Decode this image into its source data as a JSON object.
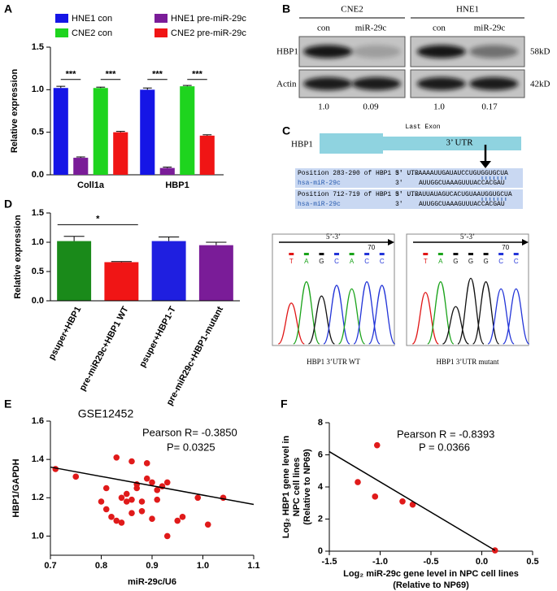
{
  "panel_labels": [
    "A",
    "B",
    "C",
    "D",
    "E",
    "F"
  ],
  "chart_data": [
    {
      "type": "bar",
      "ylabel": "Relative expression",
      "categories": [
        "Coll1a",
        "HBP1"
      ],
      "series": [
        {
          "name": "HNE1 con",
          "color": "#1515e6",
          "values": [
            1.02,
            1.0
          ],
          "errors": [
            0.02,
            0.02
          ]
        },
        {
          "name": "HNE1 pre-miR-29c",
          "color": "#7a1c98",
          "values": [
            0.2,
            0.08
          ],
          "errors": [
            0.01,
            0.01
          ]
        },
        {
          "name": "CNE2 con",
          "color": "#1ed41e",
          "values": [
            1.02,
            1.04
          ],
          "errors": [
            0.01,
            0.01
          ]
        },
        {
          "name": "CNE2 pre-miR-29c",
          "color": "#f01515",
          "values": [
            0.5,
            0.46
          ],
          "errors": [
            0.01,
            0.01
          ]
        }
      ],
      "ylim": [
        0,
        1.5
      ],
      "yticks": [
        {
          "value": 0,
          "label": "0.0"
        },
        0.5,
        {
          "value": 1,
          "label": "1.0"
        },
        1.5
      ],
      "annotations": [
        "***",
        "***",
        "***",
        "***"
      ]
    },
    {
      "type": "bar",
      "ylabel": "Relative expression",
      "categories": [
        "psuper+HBP1",
        "pre-miR29c+HBP1 WT",
        "psuper+HBP1-T",
        "pre-miR29c+HBP1-mutant"
      ],
      "values": [
        1.02,
        0.66,
        1.02,
        0.95
      ],
      "errors": [
        0.08,
        0.01,
        0.07,
        0.05
      ],
      "colors": [
        "#1a8a1a",
        "#f01515",
        "#1f1fe0",
        "#7a1c98"
      ],
      "ylim": [
        0,
        1.5
      ],
      "yticks": [
        {
          "value": 0,
          "label": "0.0"
        },
        0.5,
        {
          "value": 1,
          "label": "1.0"
        },
        1.5
      ],
      "annotations": [
        "*"
      ]
    },
    {
      "type": "scatter",
      "title": "GSE12452",
      "xlabel": "miR-29c/U6",
      "ylabel": "HBP1/GAPDH",
      "color": "#e01a1a",
      "x": [
        0.71,
        0.75,
        0.8,
        0.81,
        0.81,
        0.82,
        0.83,
        0.83,
        0.84,
        0.84,
        0.85,
        0.85,
        0.86,
        0.86,
        0.86,
        0.87,
        0.87,
        0.88,
        0.88,
        0.89,
        0.89,
        0.9,
        0.9,
        0.91,
        0.92,
        0.93,
        0.93,
        0.95,
        0.96,
        0.99,
        1.01,
        1.04,
        0.91
      ],
      "y": [
        1.35,
        1.31,
        1.18,
        1.14,
        1.25,
        1.1,
        1.41,
        1.08,
        1.07,
        1.2,
        1.18,
        1.22,
        1.39,
        1.19,
        1.12,
        1.25,
        1.27,
        1.18,
        1.13,
        1.38,
        1.3,
        1.28,
        1.09,
        1.24,
        1.26,
        1.28,
        1.0,
        1.08,
        1.1,
        1.2,
        1.06,
        1.2,
        1.19
      ],
      "trend": {
        "x": [
          0.7,
          1.1
        ],
        "y": [
          1.36,
          1.165
        ]
      },
      "xlim": [
        0.7,
        1.1
      ],
      "xticks": [
        0.7,
        0.8,
        0.9,
        {
          "value": 1,
          "label": "1.0"
        },
        1.1
      ],
      "ylim": [
        0.9,
        1.6
      ],
      "yticks": [
        {
          "value": 1,
          "label": "1.0"
        },
        1.2,
        1.4,
        1.6
      ],
      "annotations": [
        "Pearson R= -0.3850",
        "P= 0.0325"
      ]
    },
    {
      "type": "scatter",
      "xlabel": [
        "Log₂ miR-29c gene level in NPC cell lines",
        "(Relative to NP69)"
      ],
      "ylabel": [
        "Log₂ HBP1 gene level in",
        "NPC cell lines",
        "(Relative to NP69)"
      ],
      "color": "#e01a1a",
      "x": [
        -1.22,
        -1.05,
        -1.03,
        -0.78,
        -0.68,
        0.13
      ],
      "y": [
        4.3,
        3.4,
        6.6,
        3.1,
        2.9,
        0.05
      ],
      "trend": {
        "x": [
          -1.5,
          0.13
        ],
        "y": [
          6.2,
          0.05
        ]
      },
      "xlim": [
        -1.5,
        0.5
      ],
      "xticks": [
        -1.5,
        {
          "value": -1,
          "label": "-1.0"
        },
        -0.5,
        {
          "value": 0,
          "label": "0.0"
        },
        0.5
      ],
      "ylim": [
        0,
        8
      ],
      "yticks": [
        0,
        2,
        4,
        6,
        8
      ],
      "annotations": [
        "Pearson R = -0.8393",
        "P = 0.0366"
      ]
    }
  ],
  "blot": {
    "cell_lines": [
      "CNE2",
      "HNE1"
    ],
    "lanes": [
      "con",
      "miR-29c",
      "con",
      "miR-29c"
    ],
    "rows": [
      "HBP1",
      "Actin"
    ],
    "sizes": [
      "58kD",
      "42kD"
    ],
    "ratios": [
      "1.0",
      "0.09",
      "1.0",
      "0.17"
    ]
  },
  "utr": {
    "gene": "HBP1",
    "exon_label": "Last Exon",
    "utr_label": "3’ UTR",
    "alignments": [
      {
        "position": "Position 283-290 of HBP1 3' UTR",
        "target_end": "5'",
        "target": "...AAAAUUGAUAUCCUGUGGUGCUA",
        "mirna": "hsa-miR-29c",
        "mirna_end": "3'",
        "mirna_seq": "AUUGGCUAAAGUUUACCACGAU"
      },
      {
        "position": "Position 712-719 of HBP1 3' UTR",
        "target_end": "5'",
        "target": "...AUUAUAGUCACUGUAAUGGUGCUA",
        "mirna": "hsa-miR-29c",
        "mirna_end": "3'",
        "mirna_seq": "AUUGGCUAAAGUUUACCACGAU"
      }
    ]
  },
  "chromatograms": [
    {
      "direction": "5’-3’",
      "position": "70",
      "bases": [
        "T",
        "A",
        "G",
        "C",
        "A",
        "C",
        "C"
      ],
      "caption": "HBP1 3’UTR WT"
    },
    {
      "direction": "5’-3’",
      "position": "70",
      "bases": [
        "T",
        "A",
        "G",
        "G",
        "G",
        "C",
        "C"
      ],
      "caption": "HBP1 3’UTR mutant"
    }
  ]
}
